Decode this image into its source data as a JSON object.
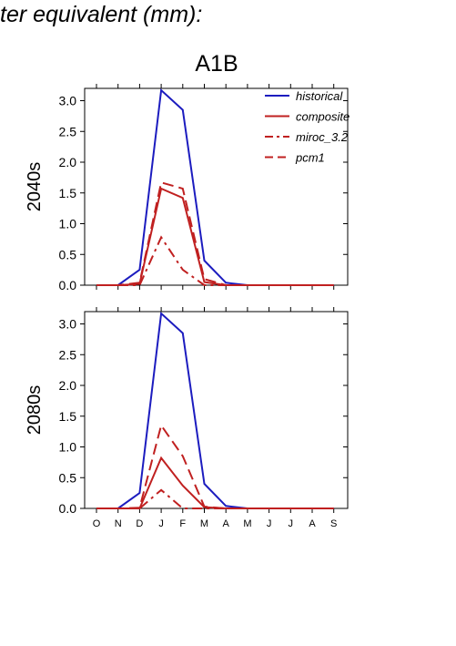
{
  "header": {
    "title": "ter equivalent (mm):",
    "scenario": "A1B"
  },
  "colors": {
    "historical": "#1c1cbf",
    "projection": "#c02020",
    "axis": "#000000"
  },
  "legend": {
    "placement": "top-right",
    "entries": [
      {
        "label": "historical",
        "color": "#1c1cbf",
        "dash": "solid"
      },
      {
        "label": "composite",
        "color": "#c02020",
        "dash": "solid"
      },
      {
        "label": "miroc_3.2",
        "color": "#c02020",
        "dash": "dashdot"
      },
      {
        "label": "pcm1",
        "color": "#c02020",
        "dash": "dashed"
      }
    ]
  },
  "chart_data": [
    {
      "type": "line",
      "period_label": "2040s",
      "x": [
        "O",
        "N",
        "D",
        "J",
        "F",
        "M",
        "A",
        "M",
        "J",
        "J",
        "A",
        "S"
      ],
      "ylim": [
        0,
        3.2
      ],
      "yticks": [
        "0.0",
        "0.5",
        "1.0",
        "1.5",
        "2.0",
        "2.5",
        "3.0"
      ],
      "show_xtick_labels": false,
      "series": [
        {
          "name": "historical",
          "style": "solid",
          "color": "#1c1cbf",
          "values": [
            0,
            0,
            0.25,
            3.17,
            2.85,
            0.4,
            0.04,
            0,
            0,
            0,
            0,
            0
          ]
        },
        {
          "name": "composite",
          "style": "solid",
          "color": "#c02020",
          "values": [
            0,
            0,
            0.02,
            1.57,
            1.42,
            0.05,
            0,
            0,
            0,
            0,
            0,
            0
          ]
        },
        {
          "name": "miroc_3.2",
          "style": "dashdot",
          "color": "#c02020",
          "values": [
            0,
            0,
            0,
            0.78,
            0.25,
            0,
            0,
            0,
            0,
            0,
            0,
            0
          ]
        },
        {
          "name": "pcm1",
          "style": "dashed",
          "color": "#c02020",
          "values": [
            0,
            0,
            0.04,
            1.67,
            1.57,
            0.1,
            0,
            0,
            0,
            0,
            0,
            0
          ]
        }
      ]
    },
    {
      "type": "line",
      "period_label": "2080s",
      "x": [
        "O",
        "N",
        "D",
        "J",
        "F",
        "M",
        "A",
        "M",
        "J",
        "J",
        "A",
        "S"
      ],
      "ylim": [
        0,
        3.2
      ],
      "yticks": [
        "0.0",
        "0.5",
        "1.0",
        "1.5",
        "2.0",
        "2.5",
        "3.0"
      ],
      "show_xtick_labels": true,
      "series": [
        {
          "name": "historical",
          "style": "solid",
          "color": "#1c1cbf",
          "values": [
            0,
            0,
            0.25,
            3.17,
            2.85,
            0.4,
            0.04,
            0,
            0,
            0,
            0,
            0
          ]
        },
        {
          "name": "composite",
          "style": "solid",
          "color": "#c02020",
          "values": [
            0,
            0,
            0,
            0.82,
            0.37,
            0.02,
            0,
            0,
            0,
            0,
            0,
            0
          ]
        },
        {
          "name": "miroc_3.2",
          "style": "dashdot",
          "color": "#c02020",
          "values": [
            0,
            0,
            0,
            0.3,
            0,
            0,
            0,
            0,
            0,
            0,
            0,
            0
          ]
        },
        {
          "name": "pcm1",
          "style": "dashed",
          "color": "#c02020",
          "values": [
            0,
            0,
            0.01,
            1.35,
            0.85,
            0.03,
            0,
            0,
            0,
            0,
            0,
            0
          ]
        }
      ]
    }
  ]
}
